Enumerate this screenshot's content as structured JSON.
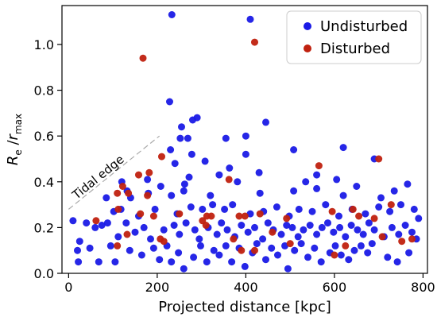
{
  "chart_data": {
    "type": "scatter",
    "xlabel": "Projected distance [kpc]",
    "ylabel": {
      "base": "R",
      "base_sub": "e",
      "mid": " /",
      "var": "r",
      "var_sub": "max"
    },
    "xlim": [
      -15,
      810
    ],
    "ylim": [
      0.0,
      1.17
    ],
    "x_ticks": [
      0,
      200,
      400,
      600,
      800
    ],
    "y_ticks": [
      0.0,
      0.2,
      0.4,
      0.6,
      0.8,
      1.0
    ],
    "y_tick_labels": [
      "0.0",
      "0.2",
      "0.4",
      "0.6",
      "0.8",
      "1.0"
    ],
    "grid": false,
    "legend": {
      "placement": "top-right"
    },
    "annotation": {
      "text": "Tidal edge",
      "line": [
        [
          0,
          0.28
        ],
        [
          205,
          0.6
        ]
      ]
    },
    "colors": {
      "Undisturbed": "#1a1ae6",
      "Disturbed": "#c0210f"
    },
    "series": [
      {
        "name": "Undisturbed",
        "points": [
          [
            233,
            1.13
          ],
          [
            410,
            1.11
          ],
          [
            228,
            0.75
          ],
          [
            290,
            0.68
          ],
          [
            280,
            0.67
          ],
          [
            445,
            0.66
          ],
          [
            255,
            0.64
          ],
          [
            252,
            0.59
          ],
          [
            269,
            0.59
          ],
          [
            355,
            0.59
          ],
          [
            400,
            0.6
          ],
          [
            620,
            0.55
          ],
          [
            230,
            0.54
          ],
          [
            278,
            0.52
          ],
          [
            400,
            0.52
          ],
          [
            508,
            0.54
          ],
          [
            240,
            0.48
          ],
          [
            308,
            0.49
          ],
          [
            363,
            0.46
          ],
          [
            690,
            0.5
          ],
          [
            272,
            0.42
          ],
          [
            340,
            0.43
          ],
          [
            430,
            0.44
          ],
          [
            560,
            0.43
          ],
          [
            120,
            0.4
          ],
          [
            178,
            0.41
          ],
          [
            208,
            0.38
          ],
          [
            262,
            0.39
          ],
          [
            381,
            0.4
          ],
          [
            535,
            0.4
          ],
          [
            605,
            0.41
          ],
          [
            650,
            0.38
          ],
          [
            765,
            0.39
          ],
          [
            85,
            0.33
          ],
          [
            132,
            0.36
          ],
          [
            140,
            0.33
          ],
          [
            180,
            0.35
          ],
          [
            232,
            0.34
          ],
          [
            260,
            0.36
          ],
          [
            320,
            0.34
          ],
          [
            432,
            0.35
          ],
          [
            508,
            0.36
          ],
          [
            560,
            0.37
          ],
          [
            620,
            0.34
          ],
          [
            705,
            0.33
          ],
          [
            735,
            0.36
          ],
          [
            88,
            0.22
          ],
          [
            102,
            0.27
          ],
          [
            118,
            0.28
          ],
          [
            158,
            0.25
          ],
          [
            195,
            0.28
          ],
          [
            245,
            0.26
          ],
          [
            276,
            0.29
          ],
          [
            302,
            0.28
          ],
          [
            325,
            0.3
          ],
          [
            352,
            0.28
          ],
          [
            370,
            0.3
          ],
          [
            410,
            0.26
          ],
          [
            440,
            0.27
          ],
          [
            470,
            0.29
          ],
          [
            498,
            0.25
          ],
          [
            520,
            0.28
          ],
          [
            550,
            0.27
          ],
          [
            580,
            0.3
          ],
          [
            610,
            0.25
          ],
          [
            640,
            0.28
          ],
          [
            670,
            0.26
          ],
          [
            700,
            0.29
          ],
          [
            725,
            0.27
          ],
          [
            750,
            0.3
          ],
          [
            780,
            0.28
          ],
          [
            790,
            0.24
          ],
          [
            10,
            0.23
          ],
          [
            25,
            0.14
          ],
          [
            40,
            0.22
          ],
          [
            60,
            0.2
          ],
          [
            75,
            0.21
          ],
          [
            112,
            0.16
          ],
          [
            130,
            0.22
          ],
          [
            150,
            0.18
          ],
          [
            170,
            0.2
          ],
          [
            185,
            0.15
          ],
          [
            215,
            0.19
          ],
          [
            238,
            0.21
          ],
          [
            250,
            0.17
          ],
          [
            265,
            0.22
          ],
          [
            285,
            0.19
          ],
          [
            295,
            0.15
          ],
          [
            315,
            0.2
          ],
          [
            335,
            0.17
          ],
          [
            345,
            0.22
          ],
          [
            358,
            0.19
          ],
          [
            375,
            0.16
          ],
          [
            390,
            0.21
          ],
          [
            405,
            0.18
          ],
          [
            420,
            0.2
          ],
          [
            438,
            0.15
          ],
          [
            450,
            0.22
          ],
          [
            462,
            0.19
          ],
          [
            480,
            0.17
          ],
          [
            492,
            0.21
          ],
          [
            505,
            0.2
          ],
          [
            518,
            0.16
          ],
          [
            530,
            0.19
          ],
          [
            545,
            0.21
          ],
          [
            560,
            0.17
          ],
          [
            572,
            0.2
          ],
          [
            585,
            0.22
          ],
          [
            598,
            0.18
          ],
          [
            612,
            0.2
          ],
          [
            625,
            0.16
          ],
          [
            638,
            0.21
          ],
          [
            652,
            0.19
          ],
          [
            665,
            0.17
          ],
          [
            678,
            0.22
          ],
          [
            690,
            0.19
          ],
          [
            712,
            0.16
          ],
          [
            730,
            0.2
          ],
          [
            745,
            0.17
          ],
          [
            760,
            0.21
          ],
          [
            775,
            0.18
          ],
          [
            785,
            0.15
          ],
          [
            20,
            0.1
          ],
          [
            22,
            0.05
          ],
          [
            48,
            0.11
          ],
          [
            68,
            0.05
          ],
          [
            95,
            0.12
          ],
          [
            105,
            0.05
          ],
          [
            138,
            0.1
          ],
          [
            165,
            0.08
          ],
          [
            192,
            0.11
          ],
          [
            205,
            0.06
          ],
          [
            222,
            0.12
          ],
          [
            232,
            0.05
          ],
          [
            248,
            0.09
          ],
          [
            260,
            0.02
          ],
          [
            282,
            0.07
          ],
          [
            298,
            0.12
          ],
          [
            312,
            0.05
          ],
          [
            328,
            0.1
          ],
          [
            340,
            0.08
          ],
          [
            355,
            0.12
          ],
          [
            368,
            0.05
          ],
          [
            385,
            0.11
          ],
          [
            398,
            0.03
          ],
          [
            415,
            0.09
          ],
          [
            425,
            0.13
          ],
          [
            445,
            0.06
          ],
          [
            458,
            0.11
          ],
          [
            472,
            0.08
          ],
          [
            488,
            0.12
          ],
          [
            495,
            0.02
          ],
          [
            510,
            0.1
          ],
          [
            525,
            0.13
          ],
          [
            540,
            0.07
          ],
          [
            555,
            0.11
          ],
          [
            570,
            0.05
          ],
          [
            590,
            0.09
          ],
          [
            602,
            0.12
          ],
          [
            615,
            0.08
          ],
          [
            632,
            0.06
          ],
          [
            645,
            0.1
          ],
          [
            660,
            0.12
          ],
          [
            675,
            0.09
          ],
          [
            685,
            0.13
          ],
          [
            720,
            0.07
          ],
          [
            742,
            0.05
          ],
          [
            768,
            0.09
          ]
        ]
      },
      {
        "name": "Disturbed",
        "points": [
          [
            420,
            1.01
          ],
          [
            168,
            0.94
          ],
          [
            210,
            0.51
          ],
          [
            700,
            0.5
          ],
          [
            565,
            0.47
          ],
          [
            182,
            0.44
          ],
          [
            158,
            0.43
          ],
          [
            110,
            0.35
          ],
          [
            122,
            0.38
          ],
          [
            135,
            0.35
          ],
          [
            178,
            0.34
          ],
          [
            362,
            0.41
          ],
          [
            112,
            0.28
          ],
          [
            162,
            0.26
          ],
          [
            192,
            0.25
          ],
          [
            250,
            0.26
          ],
          [
            312,
            0.25
          ],
          [
            302,
            0.23
          ],
          [
            385,
            0.25
          ],
          [
            398,
            0.25
          ],
          [
            432,
            0.26
          ],
          [
            492,
            0.24
          ],
          [
            595,
            0.27
          ],
          [
            642,
            0.28
          ],
          [
            655,
            0.25
          ],
          [
            690,
            0.24
          ],
          [
            728,
            0.3
          ],
          [
            62,
            0.23
          ],
          [
            132,
            0.17
          ],
          [
            207,
            0.15
          ],
          [
            310,
            0.21
          ],
          [
            322,
            0.25
          ],
          [
            372,
            0.15
          ],
          [
            460,
            0.18
          ],
          [
            500,
            0.13
          ],
          [
            600,
            0.08
          ],
          [
            625,
            0.12
          ],
          [
            708,
            0.16
          ],
          [
            752,
            0.14
          ],
          [
            775,
            0.15
          ],
          [
            110,
            0.12
          ],
          [
            215,
            0.14
          ],
          [
            390,
            0.1
          ],
          [
            420,
            0.1
          ]
        ]
      }
    ]
  }
}
